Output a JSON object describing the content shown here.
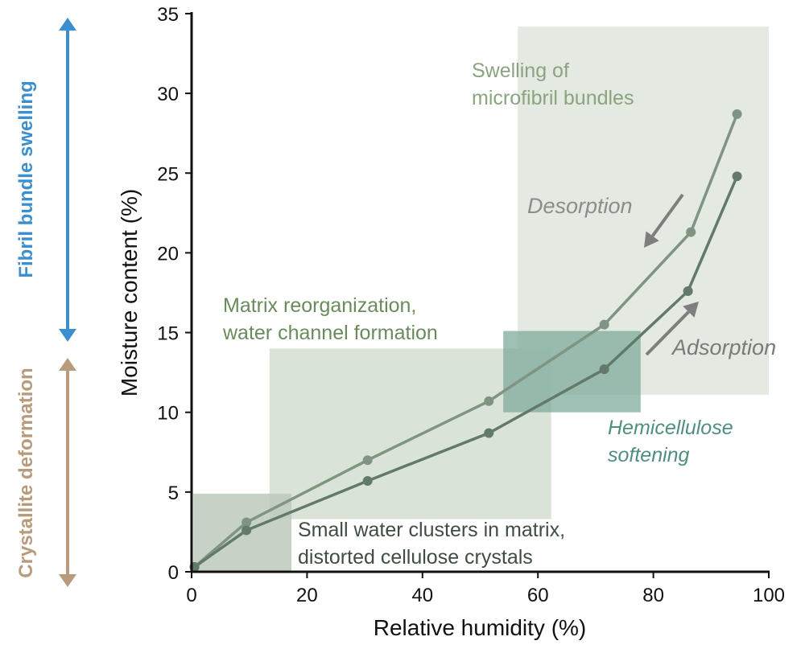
{
  "chart_data": {
    "type": "line",
    "xlabel": "Relative humidity (%)",
    "ylabel": "Moisture content (%)",
    "xlim": [
      0,
      100
    ],
    "ylim": [
      0,
      35
    ],
    "xticks": [
      0,
      20,
      40,
      60,
      80,
      100
    ],
    "yticks": [
      0,
      5,
      10,
      15,
      20,
      25,
      30,
      35
    ],
    "grid": false,
    "series": [
      {
        "name": "Desorption",
        "color": "#7f9482",
        "x": [
          0.5,
          9.5,
          30.5,
          51.5,
          71.5,
          86.5,
          94.5
        ],
        "y": [
          0.3,
          3.1,
          7.0,
          10.7,
          15.5,
          21.3,
          28.7
        ]
      },
      {
        "name": "Adsorption",
        "color": "#637a6a",
        "x": [
          0.5,
          9.5,
          30.5,
          51.5,
          71.5,
          86.0,
          94.5
        ],
        "y": [
          0.3,
          2.6,
          5.7,
          8.7,
          12.7,
          17.6,
          24.8
        ]
      }
    ],
    "regions": [
      {
        "name": "swelling",
        "x": [
          56.5,
          100
        ],
        "y": [
          11.1,
          34.2
        ],
        "color": "#dfe5dc",
        "label": [
          "Swelling of",
          "microfibril bundles"
        ],
        "label_color": "#8aa47f"
      },
      {
        "name": "matrix",
        "x": [
          13.5,
          62.3
        ],
        "y": [
          3.3,
          14.0
        ],
        "color": "#d3dfcf",
        "label": [
          "Matrix reorganization,",
          "water channel formation"
        ],
        "label_color": "#6a8c5c"
      },
      {
        "name": "clusters",
        "x": [
          0.3,
          17.3
        ],
        "y": [
          0,
          4.9
        ],
        "color": "#bccabb",
        "label": [
          "Small water clusters in matrix,",
          "distorted cellulose crystals"
        ],
        "label_color": "#3f4d42"
      },
      {
        "name": "hemicellulose",
        "x": [
          54,
          77.8
        ],
        "y": [
          10.0,
          15.1
        ],
        "color": "#7fab9c",
        "label": [
          "Hemicellulose",
          "softening"
        ],
        "label_color": "#4e8f7e"
      }
    ],
    "annotations": [
      {
        "text": "Desorption",
        "color": "#8c8c8c"
      },
      {
        "text": "Adsorption",
        "color": "#7a7a7a"
      }
    ],
    "side_ranges": [
      {
        "label": "Fibril bundle swelling",
        "color": "#3b8fcf"
      },
      {
        "label": "Crystallite deformation",
        "color": "#b89a7c"
      }
    ]
  }
}
